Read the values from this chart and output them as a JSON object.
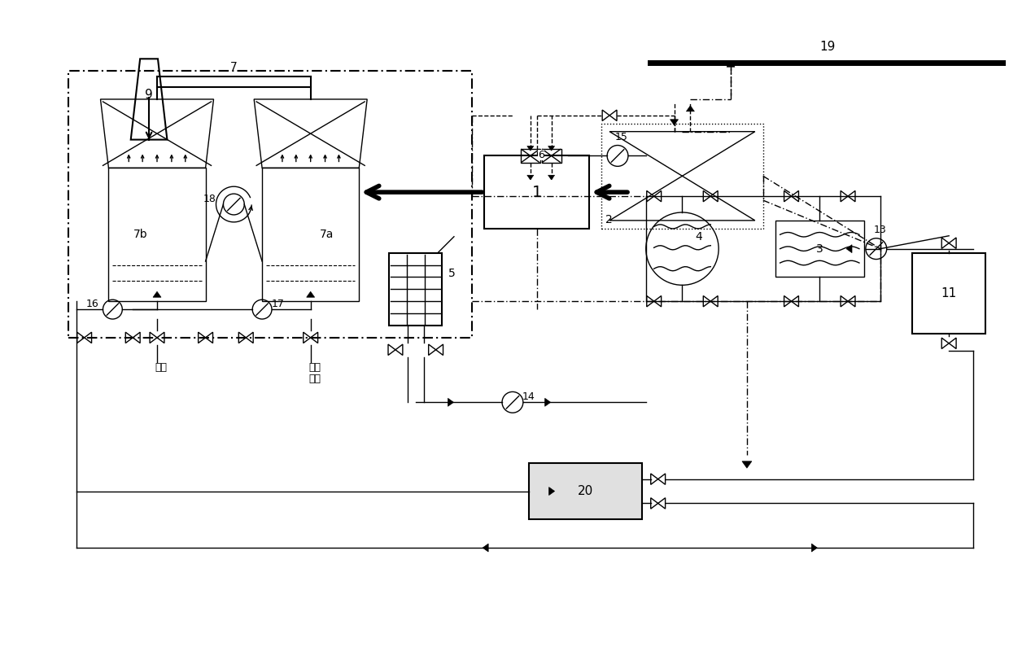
{
  "bg_color": "#ffffff",
  "figsize": [
    12.4,
    7.95
  ],
  "dpi": 100,
  "xlim": [
    0,
    124
  ],
  "ylim": [
    0,
    79.5
  ]
}
